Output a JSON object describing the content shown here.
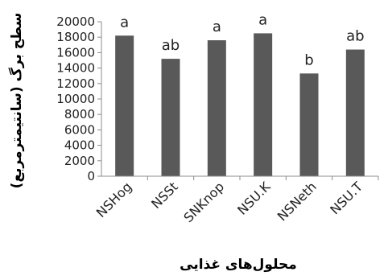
{
  "chart_data": {
    "type": "bar",
    "categories": [
      "NSHog",
      "NSSt",
      "SNKnop",
      "NSU.K",
      "NSNeth",
      "NSU.T"
    ],
    "values": [
      18200,
      15200,
      17600,
      18500,
      13300,
      16400
    ],
    "significance_labels": [
      "a",
      "ab",
      "a",
      "a",
      "b",
      "ab"
    ],
    "xlabel": "محلول‌های غذایی",
    "ylabel": "سطح برگ (سانتیمترمربع)",
    "ylim": [
      0,
      20000
    ],
    "yticks": [
      0,
      2000,
      4000,
      6000,
      8000,
      10000,
      12000,
      14000,
      16000,
      18000,
      20000
    ],
    "grid": false,
    "legend": "none",
    "bar_color": "#595959",
    "axis_color": "#8c8c8c"
  }
}
